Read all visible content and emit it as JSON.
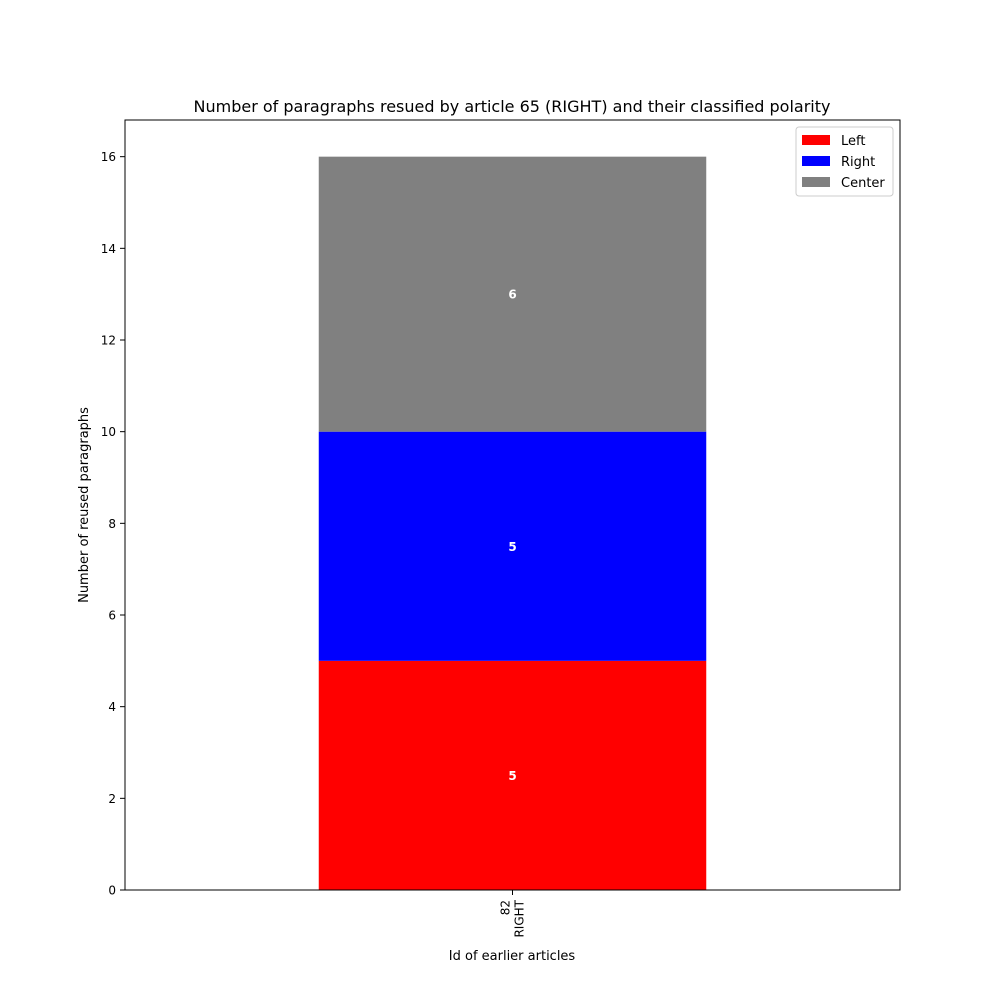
{
  "chart_data": {
    "type": "bar",
    "stacked": true,
    "title": "Number of paragraphs resued by article 65 (RIGHT) and their classified polarity",
    "xlabel": "Id of earlier articles",
    "ylabel": "Number of reused paragraphs",
    "categories": [
      {
        "id": "82",
        "polarity": "RIGHT"
      }
    ],
    "series": [
      {
        "name": "Left",
        "color": "#ff0000",
        "values": [
          5
        ]
      },
      {
        "name": "Right",
        "color": "#0000ff",
        "values": [
          5
        ]
      },
      {
        "name": "Center",
        "color": "#808080",
        "values": [
          6
        ]
      }
    ],
    "ylim": [
      0,
      16.8
    ],
    "yticks": [
      0,
      2,
      4,
      6,
      8,
      10,
      12,
      14,
      16
    ],
    "legend_position": "top-right",
    "grid": false
  }
}
